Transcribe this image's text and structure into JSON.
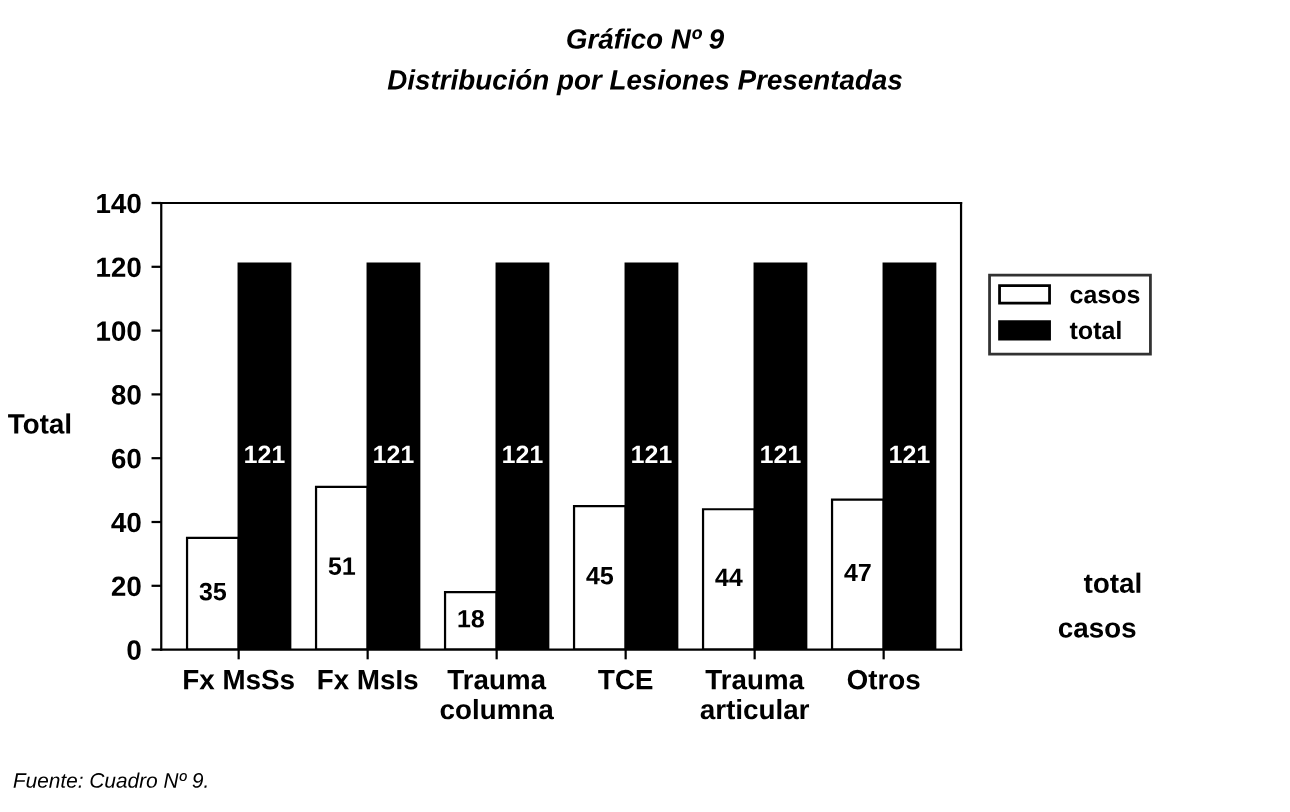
{
  "chart_data": {
    "type": "bar",
    "title": "Gráfico Nº 9",
    "subtitle": "Distribución por Lesiones Presentadas",
    "ylabel": "Total",
    "categories": [
      "Fx MsSs",
      "Fx MsIs",
      "Trauma\ncolumna",
      "TCE",
      "Trauma\narticular",
      "Otros"
    ],
    "series": [
      {
        "name": "casos",
        "color": "#ffffff",
        "values": [
          35,
          51,
          18,
          45,
          44,
          47
        ]
      },
      {
        "name": "total",
        "color": "#000000",
        "values": [
          121,
          121,
          121,
          121,
          121,
          121
        ]
      }
    ],
    "ylim": [
      0,
      140
    ],
    "yticks": [
      0,
      20,
      40,
      60,
      80,
      100,
      120,
      140
    ],
    "grid": false,
    "legend": "right",
    "data_labels": true,
    "annotations": [
      "total",
      "casos",
      "Fuente: Cuadro Nº 9."
    ]
  }
}
